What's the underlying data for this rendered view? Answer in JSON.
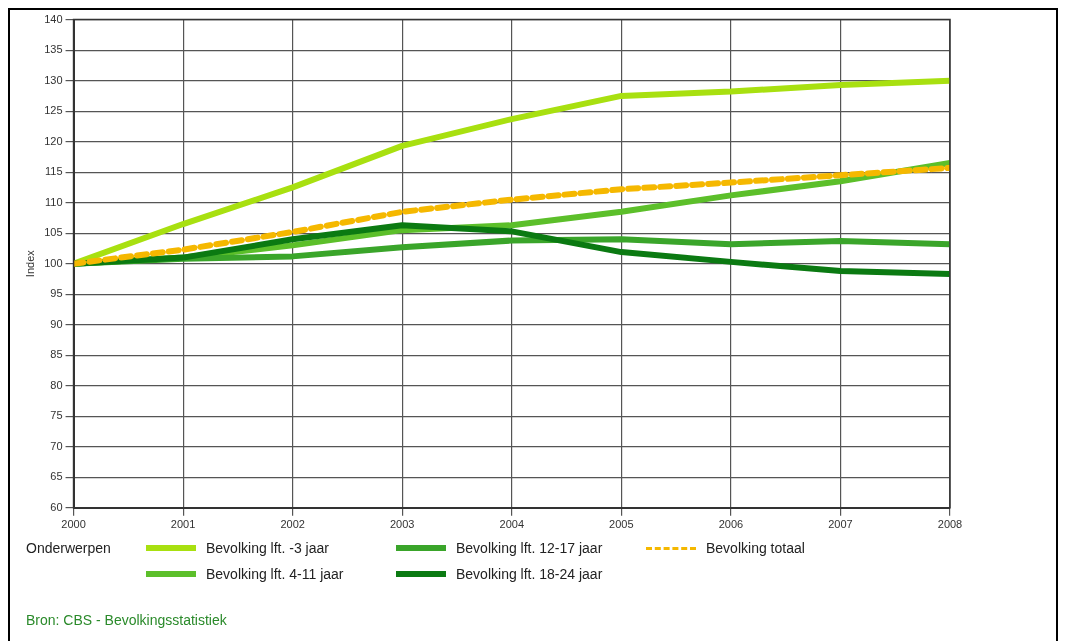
{
  "chart_data": {
    "type": "line",
    "ylabel": "Index",
    "legend_title": "Onderwerpen",
    "x": [
      2000,
      2001,
      2002,
      2003,
      2004,
      2005,
      2006,
      2007,
      2008
    ],
    "xlim": [
      2000,
      2008
    ],
    "xticks": [
      2000,
      2001,
      2002,
      2003,
      2004,
      2005,
      2006,
      2007,
      2008
    ],
    "ylim": [
      60,
      140
    ],
    "yticks": [
      60,
      65,
      70,
      75,
      80,
      85,
      90,
      95,
      100,
      105,
      110,
      115,
      120,
      125,
      130,
      135,
      140
    ],
    "grid": true,
    "legend": "bottom",
    "marker": "none",
    "series": [
      {
        "name": "Bevolking lft. -3 jaar",
        "color": "#a8e010",
        "values": [
          100,
          106.5,
          112.5,
          119.3,
          123.7,
          127.5,
          128.2,
          129.3,
          130
        ]
      },
      {
        "name": "Bevolking lft. 4-11 jaar",
        "color": "#5cbf2a",
        "values": [
          100,
          101,
          103,
          105.5,
          106.3,
          108.5,
          111.2,
          113.5,
          116.5
        ]
      },
      {
        "name": "Bevolking lft. 12-17 jaar",
        "color": "#3aa52a",
        "values": [
          100,
          100.8,
          101.2,
          102.7,
          103.8,
          104,
          103.2,
          103.7,
          103.2
        ]
      },
      {
        "name": "Bevolking lft. 18-24 jaar",
        "color": "#0b7a12",
        "values": [
          100,
          101,
          104,
          106.3,
          105.3,
          101.9,
          100.3,
          98.8,
          98.3
        ]
      },
      {
        "name": "Bevolking totaal",
        "color": "#f5b800",
        "line_style": "dashed",
        "values": [
          100,
          102.3,
          105.2,
          108.5,
          110.5,
          112.2,
          113.3,
          114.5,
          115.7
        ]
      }
    ],
    "annotations": [
      "Bron: CBS - Bevolkingsstatistiek"
    ]
  }
}
